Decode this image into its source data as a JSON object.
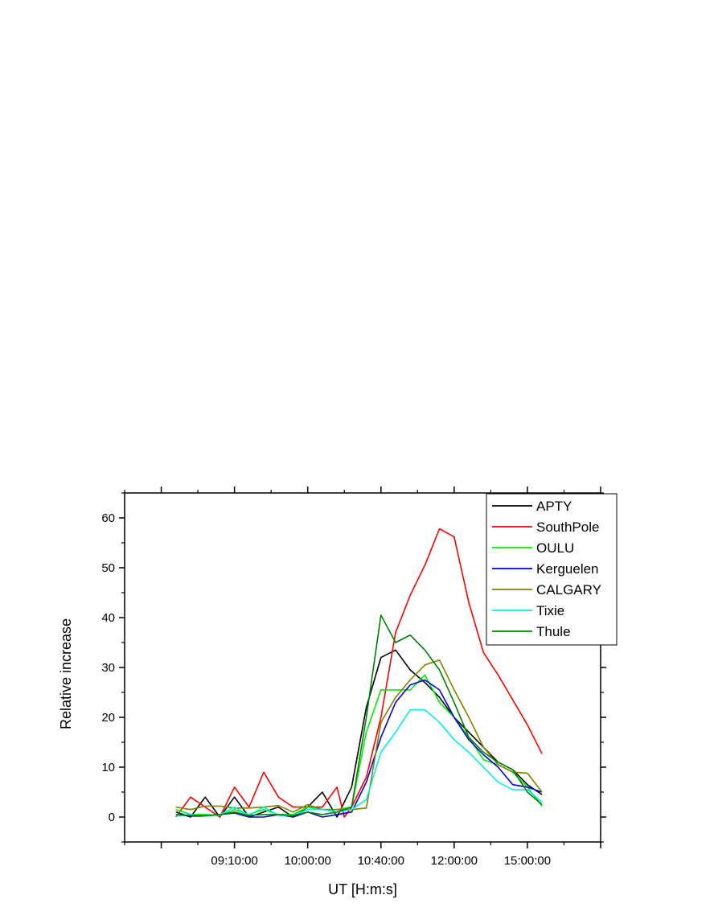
{
  "chart_data": {
    "type": "line",
    "title": "",
    "xlabel": "UT [H:m:s]",
    "ylabel": "Relative increase",
    "xlim": [
      0,
      13
    ],
    "ylim": [
      -5,
      65
    ],
    "x_ticks": [
      {
        "x": 1,
        "label": ""
      },
      {
        "x": 3,
        "label": "09:10:00"
      },
      {
        "x": 5,
        "label": "10:00:00"
      },
      {
        "x": 7,
        "label": "10:40:00"
      },
      {
        "x": 9,
        "label": "12:00:00"
      },
      {
        "x": 11,
        "label": "15:00:00"
      },
      {
        "x": 13,
        "label": ""
      }
    ],
    "y_ticks": [
      0,
      10,
      20,
      30,
      40,
      50,
      60
    ],
    "legend_position": "top-right",
    "grid": false,
    "series": [
      {
        "name": "APTY",
        "color": "#000000",
        "x": [
          1.4,
          1.8,
          2.2,
          2.6,
          3.0,
          3.4,
          3.8,
          4.2,
          4.6,
          5.0,
          5.4,
          5.8,
          6.2,
          6.6,
          7.0,
          7.4,
          7.8,
          8.2,
          8.6,
          9.0,
          9.4,
          9.8,
          10.2,
          10.6,
          11.0,
          11.4
        ],
        "y": [
          1,
          0,
          4,
          0,
          4,
          0,
          1,
          2,
          0,
          2,
          5,
          0,
          6,
          22,
          32,
          33.5,
          29.5,
          27,
          24,
          20,
          17,
          14,
          11,
          9.5,
          6.5,
          4.5
        ]
      },
      {
        "name": "SouthPole",
        "color": "#ff0000",
        "x": [
          1.4,
          1.8,
          2.2,
          2.6,
          3.0,
          3.4,
          3.8,
          4.2,
          4.6,
          5.0,
          5.4,
          5.8,
          6.0,
          6.2,
          6.6,
          7.0,
          7.4,
          7.8,
          8.2,
          8.6,
          9.0,
          9.4,
          9.8,
          10.2,
          10.6,
          11.0,
          11.4
        ],
        "y": [
          0,
          4,
          2,
          0,
          6,
          2,
          9,
          4,
          2,
          2,
          2,
          6,
          0,
          2,
          8,
          20,
          37,
          44.5,
          50.5,
          57.8,
          56.2,
          43,
          33,
          28.5,
          23.5,
          18.5,
          12.7
        ]
      },
      {
        "name": "OULU",
        "color": "#00ee00",
        "x": [
          1.4,
          1.8,
          2.2,
          2.6,
          3.0,
          3.4,
          3.8,
          4.2,
          4.6,
          5.0,
          5.4,
          5.8,
          6.2,
          6.6,
          7.0,
          7.4,
          7.8,
          8.2,
          8.6,
          9.0,
          9.4,
          9.8,
          10.2,
          10.6,
          11.0,
          11.4
        ],
        "y": [
          1.5,
          0.5,
          0.5,
          0.3,
          1.5,
          0.5,
          1.5,
          0.5,
          0.5,
          2,
          1.5,
          1.5,
          2,
          17,
          25.5,
          25.5,
          25.5,
          28.5,
          23,
          20,
          16,
          11.5,
          10.5,
          9,
          6,
          2.2
        ]
      },
      {
        "name": "Kerguelen",
        "color": "#0000dd",
        "x": [
          1.4,
          1.8,
          2.2,
          2.6,
          3.0,
          3.4,
          3.8,
          4.2,
          4.6,
          5.0,
          5.4,
          5.8,
          6.2,
          6.6,
          7.0,
          7.4,
          7.8,
          8.2,
          8.6,
          9.0,
          9.4,
          9.8,
          10.2,
          10.6,
          11.0,
          11.4
        ],
        "y": [
          0.5,
          0.2,
          0.2,
          0.5,
          0.8,
          0,
          0,
          0.5,
          0,
          1,
          0,
          0.5,
          1,
          7,
          16,
          23,
          26.5,
          27.5,
          25.5,
          20,
          15.5,
          12.5,
          10,
          6.5,
          6,
          5
        ]
      },
      {
        "name": "CALGARY",
        "color": "#808000",
        "x": [
          1.4,
          1.8,
          2.2,
          2.6,
          3.0,
          3.4,
          3.8,
          4.2,
          4.6,
          5.0,
          5.4,
          5.8,
          6.2,
          6.6,
          7.0,
          7.4,
          7.8,
          8.2,
          8.6,
          9.0,
          9.4,
          9.8,
          10.2,
          10.6,
          11.0,
          11.4
        ],
        "y": [
          2,
          1.5,
          2.2,
          2.2,
          1.8,
          1.8,
          2,
          2.3,
          1,
          2.5,
          1.5,
          1.5,
          1.5,
          1.8,
          19,
          24,
          27.5,
          30.5,
          31.5,
          25.5,
          20,
          14,
          10.5,
          9,
          8.8,
          5
        ]
      },
      {
        "name": "Tixie",
        "color": "#00eeee",
        "x": [
          1.4,
          1.8,
          2.2,
          2.6,
          3.0,
          3.4,
          3.8,
          4.2,
          4.6,
          5.0,
          5.4,
          5.8,
          6.2,
          6.6,
          7.0,
          7.4,
          7.8,
          8.2,
          8.6,
          9.0,
          9.4,
          9.8,
          10.2,
          10.6,
          11.0,
          11.4
        ],
        "y": [
          0.2,
          0.5,
          0.2,
          0.5,
          2,
          0.3,
          2,
          0.3,
          0.3,
          1.5,
          1.5,
          1,
          1.5,
          3.5,
          13,
          17,
          21.5,
          21.5,
          19,
          15.5,
          13,
          10,
          7,
          5.5,
          5.5,
          3
        ]
      },
      {
        "name": "Thule",
        "color": "#008000",
        "x": [
          1.4,
          1.8,
          2.2,
          2.6,
          3.0,
          3.4,
          3.8,
          4.2,
          4.6,
          5.0,
          5.4,
          5.8,
          6.2,
          6.6,
          7.0,
          7.4,
          7.8,
          8.2,
          8.6,
          9.0,
          9.4,
          9.8,
          10.2,
          10.6,
          11.0,
          11.4
        ],
        "y": [
          0.5,
          0.3,
          0.3,
          0.5,
          1,
          0.3,
          0.5,
          0.5,
          0.3,
          1,
          0.5,
          1,
          2,
          20,
          40.5,
          35,
          36.5,
          33.5,
          29.5,
          23,
          16,
          13,
          11,
          9.5,
          5,
          2.5
        ]
      }
    ]
  }
}
